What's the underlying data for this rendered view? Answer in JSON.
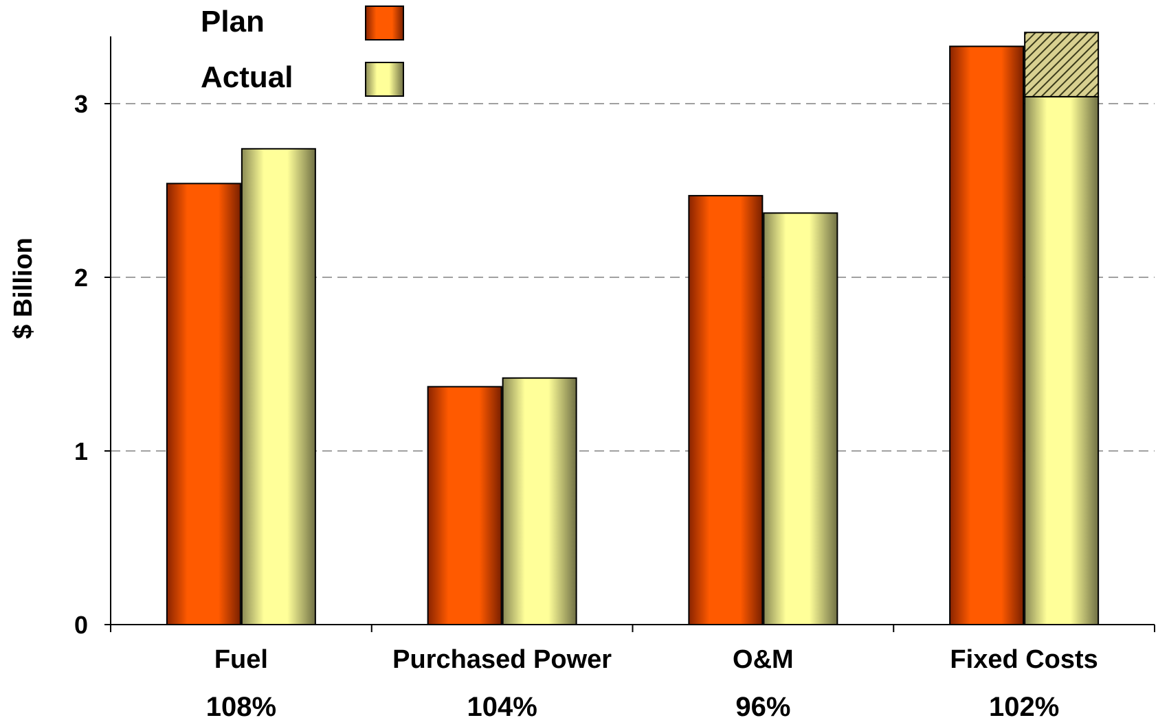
{
  "chart_data": {
    "type": "bar",
    "categories": [
      "Fuel",
      "Purchased Power",
      "O&M",
      "Fixed Costs"
    ],
    "category_percent_labels": [
      "108%",
      "104%",
      "96%",
      "102%"
    ],
    "series": [
      {
        "name": "Plan",
        "values": [
          2.54,
          1.37,
          2.47,
          3.33
        ],
        "color": "#ff5a00"
      },
      {
        "name": "Actual",
        "values": [
          2.74,
          1.42,
          2.37,
          3.04
        ],
        "color": "#ffff99"
      }
    ],
    "actual_hatched_extension": {
      "category": "Fixed Costs",
      "from": 3.04,
      "to": 3.41
    },
    "xlabel": "",
    "ylabel": "$ Billion",
    "ylim": [
      0,
      3.41
    ],
    "yticks": [
      0,
      1,
      2,
      3
    ],
    "ytick_labels": [
      "0",
      "1",
      "2",
      "3"
    ],
    "gridlines": "dashed horizontal at 1, 2, 3",
    "legend_position": "top-left",
    "colors": {
      "plan": "#ff5a00",
      "actual": "#ffff99",
      "gridline": "#a0a0a0",
      "axis": "#000000"
    }
  }
}
